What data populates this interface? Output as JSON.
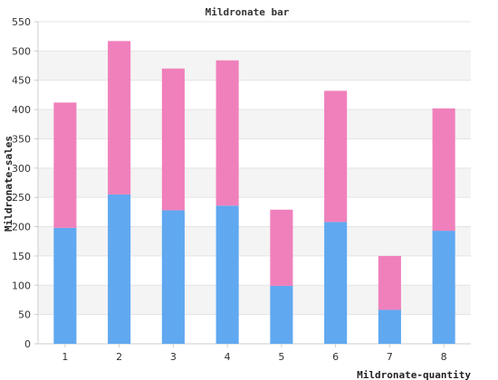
{
  "chart_data": {
    "type": "bar",
    "stacked": true,
    "title": "Mildronate bar",
    "xlabel": "Mildronate-quantity",
    "ylabel": "Mildronate-sales",
    "categories": [
      "1",
      "2",
      "3",
      "4",
      "5",
      "6",
      "7",
      "8"
    ],
    "series": [
      {
        "color": "#60a8f0",
        "values": [
          198,
          255,
          228,
          236,
          99,
          208,
          58,
          193
        ]
      },
      {
        "color": "#f080bc",
        "values": [
          214,
          262,
          242,
          248,
          130,
          224,
          92,
          209
        ]
      }
    ],
    "ylim": [
      0,
      550
    ],
    "yticks": [
      0,
      50,
      100,
      150,
      200,
      250,
      300,
      350,
      400,
      450,
      500,
      550
    ],
    "grid": true,
    "band_color": "#f4f4f4",
    "legend": "none"
  }
}
